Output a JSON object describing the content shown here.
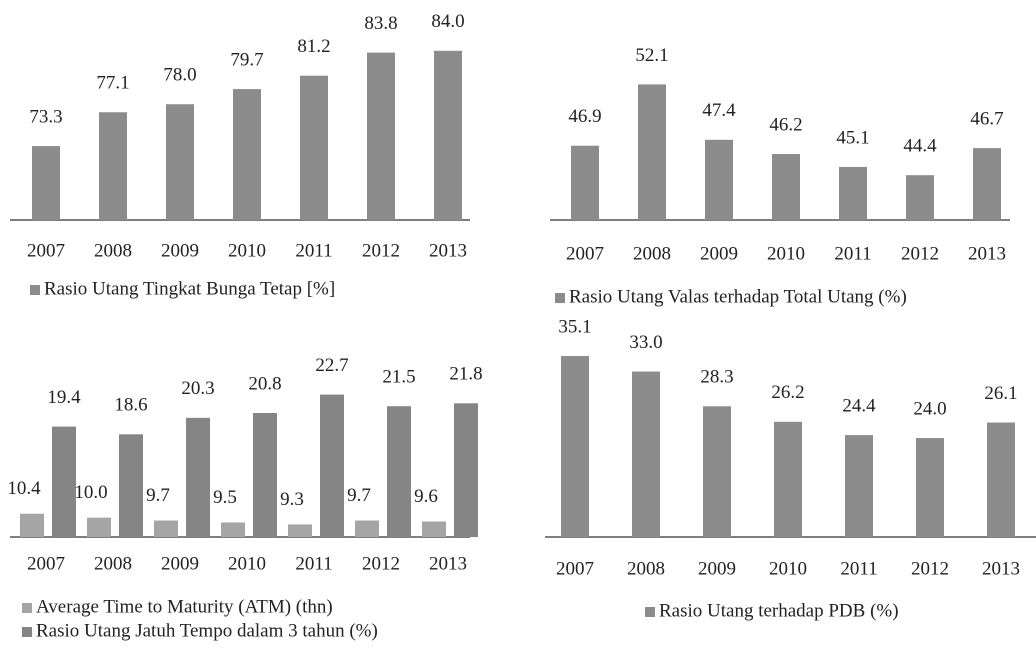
{
  "chart_data": [
    {
      "type": "bar",
      "categories": [
        "2007",
        "2008",
        "2009",
        "2010",
        "2011",
        "2012",
        "2013"
      ],
      "series": [
        {
          "name": "Rasio Utang Tingkat Bunga Tetap [%]",
          "color": "#8c8c8c",
          "values": [
            73.3,
            77.1,
            78.0,
            79.7,
            81.2,
            83.8,
            84.0
          ],
          "value_labels": [
            "73.3",
            "77.1",
            "78.0",
            "79.7",
            "81.2",
            "83.8",
            "84.0"
          ]
        }
      ],
      "ylim": [
        65,
        86
      ]
    },
    {
      "type": "bar",
      "categories": [
        "2007",
        "2008",
        "2009",
        "2010",
        "2011",
        "2012",
        "2013"
      ],
      "series": [
        {
          "name": "Rasio Utang Valas terhadap Total Utang (%)",
          "color": "#8c8c8c",
          "values": [
            46.9,
            52.1,
            47.4,
            46.2,
            45.1,
            44.4,
            46.7
          ]
        }
      ],
      "ylim": [
        40.6,
        54
      ]
    },
    {
      "type": "bar",
      "categories": [
        "2007",
        "2008",
        "2009",
        "2010",
        "2011",
        "2012",
        "2013"
      ],
      "series": [
        {
          "name": "Average Time to Maturity (ATM) (thn)",
          "color": "#a5a5a5",
          "values": [
            10.4,
            10.0,
            9.7,
            9.5,
            9.3,
            9.7,
            9.6
          ],
          "value_labels": [
            "10.4",
            "10.0",
            "9.7",
            "9.5",
            "9.3",
            "9.7",
            "9.6"
          ]
        },
        {
          "name": "Rasio Utang Jatuh Tempo dalam 3 tahun (%)",
          "color": "#858585",
          "values": [
            19.4,
            18.6,
            20.3,
            20.8,
            22.7,
            21.5,
            21.8
          ]
        }
      ],
      "ylim": [
        8,
        24
      ]
    },
    {
      "type": "bar",
      "categories": [
        "2007",
        "2008",
        "2009",
        "2010",
        "2011",
        "2012",
        "2013"
      ],
      "series": [
        {
          "name": "Rasio Utang terhadap PDB (%)",
          "color": "#8c8c8c",
          "values": [
            35.1,
            33.0,
            28.3,
            26.2,
            24.4,
            24.0,
            26.1
          ],
          "value_labels": [
            "35.1",
            "33.0",
            "28.3",
            "26.2",
            "24.4",
            "24.0",
            "26.1"
          ]
        }
      ],
      "ylim": [
        10.6,
        37
      ]
    }
  ]
}
